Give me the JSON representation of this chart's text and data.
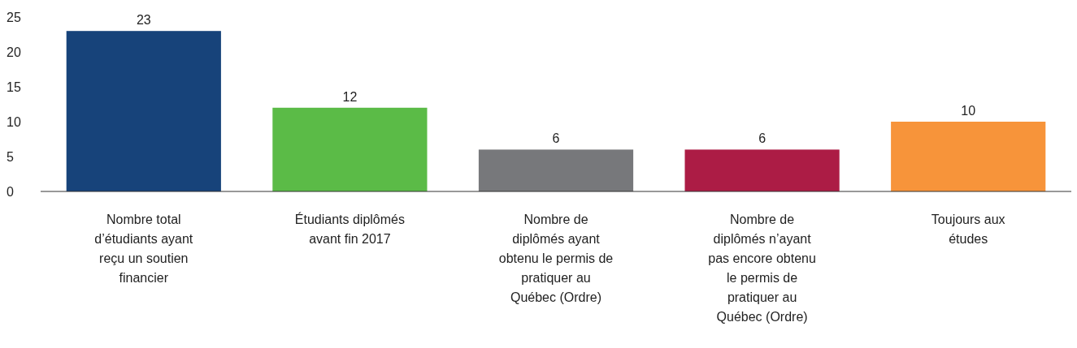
{
  "chart_data": {
    "type": "bar",
    "categories": [
      "Nombre total d’étudiants ayant reçu un soutien financier",
      "Étudiants diplômés avant fin 2017",
      "Nombre de diplômés ayant obtenu le permis de pratiquer au Québec (Ordre)",
      "Nombre de diplômés n’ayant pas encore obtenu le permis de pratiquer au Québec (Ordre)",
      "Toujours aux études"
    ],
    "values": [
      23,
      12,
      6,
      6,
      10
    ],
    "colors": [
      "#17437a",
      "#5bbb47",
      "#77787b",
      "#ac1c45",
      "#f7943a"
    ],
    "ylim": [
      0,
      25
    ],
    "yticks": [
      0,
      5,
      10,
      15,
      20,
      25
    ],
    "grid": false,
    "data_labels": true
  }
}
